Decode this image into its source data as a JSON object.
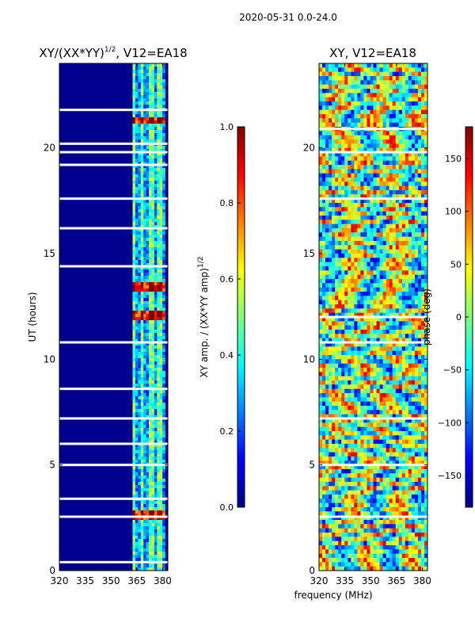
{
  "suptitle": "2020-05-31 0.0-24.0",
  "chart_data": [
    {
      "type": "heatmap",
      "title_main": "XY/(XX*YY)",
      "title_exp": "1/2",
      "title_tail": ", V12=EA18",
      "xlabel": "",
      "ylabel": "UT (hours)",
      "xlim": [
        320,
        383
      ],
      "ylim": [
        0,
        24
      ],
      "xticks": [
        320,
        335,
        350,
        365,
        380
      ],
      "yticks": [
        0,
        5,
        10,
        15,
        20
      ],
      "colormap": "jet",
      "signal_band_mhz": [
        362,
        382
      ],
      "strong_rows_ut": [
        2.6,
        12.1,
        13.4,
        21.3
      ],
      "gap_rows_ut": [
        0.4,
        2.55,
        3.4,
        5.0,
        6.0,
        7.2,
        8.6,
        10.8,
        14.4,
        16.2,
        17.6,
        19.2,
        19.8,
        20.2,
        21.8
      ],
      "colorbar": {
        "label_main": "XY amp. / (XX*YY amp)",
        "label_exp": "1/2",
        "range": [
          0.0,
          1.0
        ],
        "ticks": [
          "0.0",
          "0.2",
          "0.4",
          "0.6",
          "0.8",
          "1.0"
        ]
      }
    },
    {
      "type": "heatmap",
      "title": "XY, V12=EA18",
      "xlabel": "frequency (MHz)",
      "ylabel": "",
      "xlim": [
        320,
        383
      ],
      "ylim": [
        0,
        24
      ],
      "xticks": [
        320,
        335,
        350,
        365,
        380
      ],
      "yticks": [
        0,
        5,
        10,
        15,
        20
      ],
      "colormap": "jet",
      "gap_rows_ut": [
        2.55,
        5.0,
        7.2,
        10.8,
        12.0,
        17.6,
        19.8,
        20.9
      ],
      "colorbar": {
        "label": "phase (deg)",
        "range": [
          -180,
          180
        ],
        "ticks": [
          "−150",
          "−100",
          "−50",
          "0",
          "50",
          "100",
          "150"
        ]
      }
    }
  ]
}
